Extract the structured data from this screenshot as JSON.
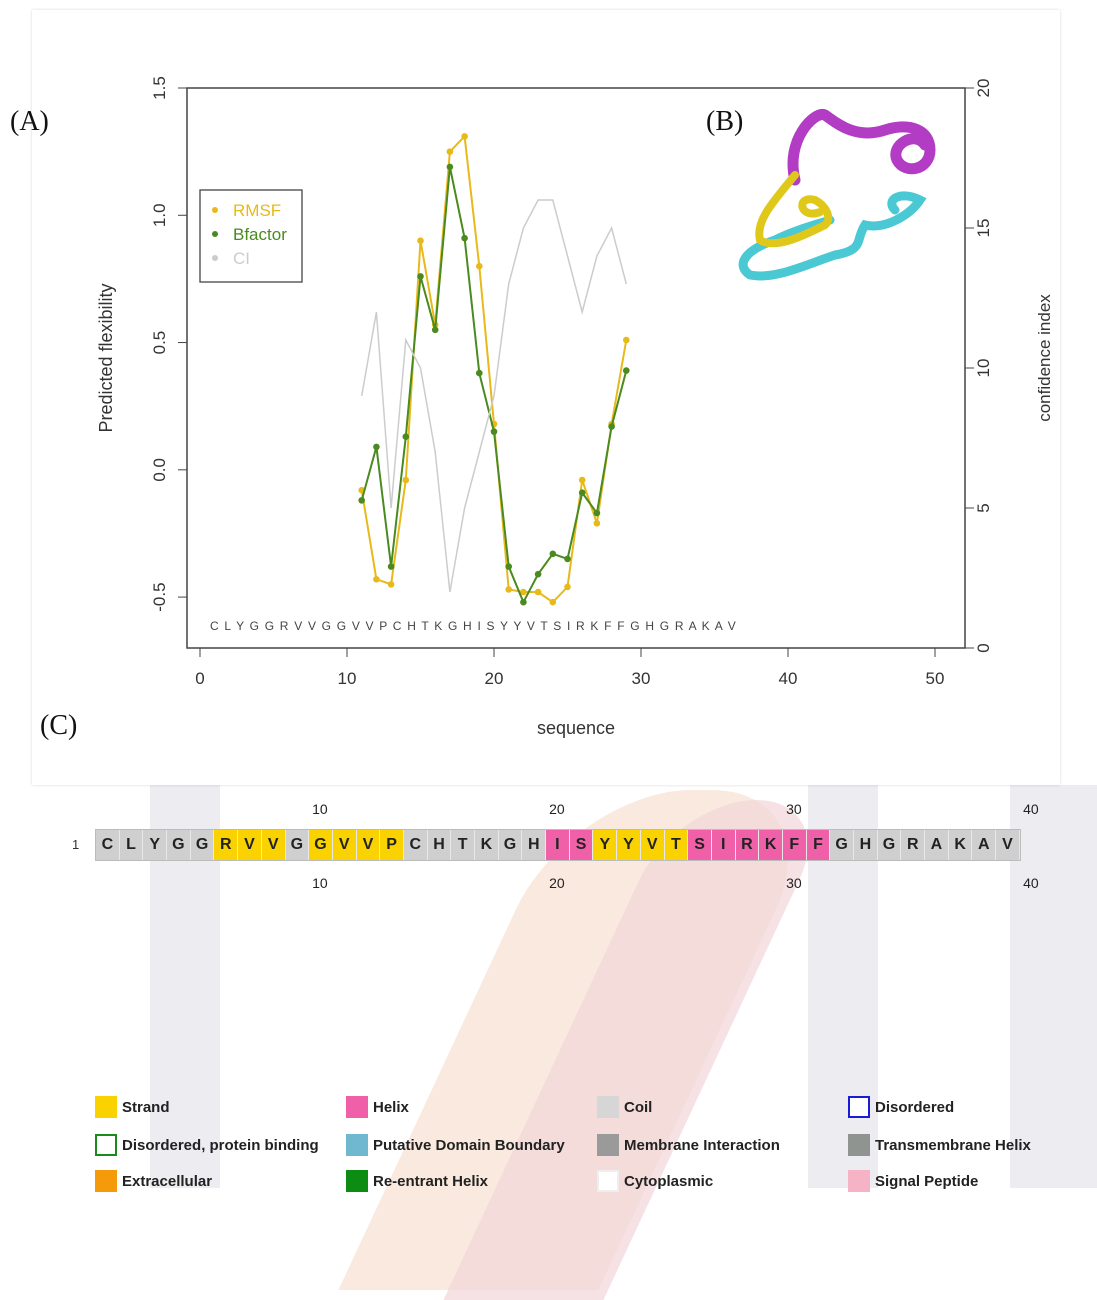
{
  "panels": {
    "a": "(A)",
    "b": "(B)",
    "c": "(C)"
  },
  "chart_data": {
    "type": "line",
    "xlabel": "sequence",
    "ylabel": "Predicted flexibility",
    "y2label": "confidence index",
    "xlim": [
      0,
      50
    ],
    "ylim": [
      -0.7,
      1.5
    ],
    "y2lim": [
      0,
      20
    ],
    "xticks": [
      0,
      10,
      20,
      30,
      40,
      50
    ],
    "yticks": [
      -0.5,
      0.0,
      0.5,
      1.0,
      1.5
    ],
    "y2ticks": [
      0,
      5,
      10,
      15,
      20
    ],
    "legend_position": "top-left",
    "x": [
      11,
      12,
      13,
      14,
      15,
      16,
      17,
      18,
      19,
      20,
      21,
      22,
      23,
      24,
      25,
      26,
      27,
      28,
      29
    ],
    "series": [
      {
        "name": "RMSF",
        "color": "#e8b91a",
        "values": [
          -0.08,
          -0.43,
          -0.45,
          -0.04,
          0.9,
          0.57,
          1.25,
          1.31,
          0.8,
          0.18,
          -0.47,
          -0.48,
          -0.48,
          -0.52,
          -0.46,
          -0.04,
          -0.21,
          0.18,
          0.51
        ]
      },
      {
        "name": "Bfactor",
        "color": "#4a8a1e",
        "values": [
          -0.12,
          0.09,
          -0.38,
          0.13,
          0.76,
          0.55,
          1.19,
          0.91,
          0.38,
          0.15,
          -0.38,
          -0.52,
          -0.41,
          -0.33,
          -0.35,
          -0.09,
          -0.17,
          0.17,
          0.39
        ]
      },
      {
        "name": "CI",
        "color": "#cccccc",
        "axis": "right",
        "values": [
          9,
          12,
          5,
          11,
          10,
          7,
          2,
          5,
          7,
          9,
          13,
          15,
          16,
          16,
          14,
          12,
          14,
          15,
          13
        ]
      }
    ],
    "sequence_letters": "C L Y G G R V V G G V V P C H T K G H I S Y Y V T S I R K F F G H G R A K A V"
  },
  "sequence_viewer": {
    "start": "1",
    "top_numbers": [
      "10",
      "20",
      "30",
      "40"
    ],
    "bottom_numbers": [
      "10",
      "20",
      "30",
      "40"
    ],
    "residues": [
      {
        "aa": "C",
        "type": "coil"
      },
      {
        "aa": "L",
        "type": "coil"
      },
      {
        "aa": "Y",
        "type": "coil"
      },
      {
        "aa": "G",
        "type": "coil"
      },
      {
        "aa": "G",
        "type": "coil"
      },
      {
        "aa": "R",
        "type": "strand"
      },
      {
        "aa": "V",
        "type": "strand"
      },
      {
        "aa": "V",
        "type": "strand"
      },
      {
        "aa": "G",
        "type": "coil"
      },
      {
        "aa": "G",
        "type": "strand"
      },
      {
        "aa": "V",
        "type": "strand"
      },
      {
        "aa": "V",
        "type": "strand"
      },
      {
        "aa": "P",
        "type": "strand"
      },
      {
        "aa": "C",
        "type": "coil"
      },
      {
        "aa": "H",
        "type": "coil"
      },
      {
        "aa": "T",
        "type": "coil"
      },
      {
        "aa": "K",
        "type": "coil"
      },
      {
        "aa": "G",
        "type": "coil"
      },
      {
        "aa": "H",
        "type": "coil"
      },
      {
        "aa": "I",
        "type": "helix"
      },
      {
        "aa": "S",
        "type": "helix"
      },
      {
        "aa": "Y",
        "type": "strand"
      },
      {
        "aa": "Y",
        "type": "strand"
      },
      {
        "aa": "V",
        "type": "strand"
      },
      {
        "aa": "T",
        "type": "strand"
      },
      {
        "aa": "S",
        "type": "helix"
      },
      {
        "aa": "I",
        "type": "helix"
      },
      {
        "aa": "R",
        "type": "helix"
      },
      {
        "aa": "K",
        "type": "helix"
      },
      {
        "aa": "F",
        "type": "helix"
      },
      {
        "aa": "F",
        "type": "helix"
      },
      {
        "aa": "G",
        "type": "coil"
      },
      {
        "aa": "H",
        "type": "coil"
      },
      {
        "aa": "G",
        "type": "coil"
      },
      {
        "aa": "R",
        "type": "coil"
      },
      {
        "aa": "A",
        "type": "coil"
      },
      {
        "aa": "K",
        "type": "coil"
      },
      {
        "aa": "A",
        "type": "coil"
      },
      {
        "aa": "V",
        "type": "coil"
      }
    ],
    "colors": {
      "strand": "#f9d200",
      "helix": "#f060a8",
      "coil": "#cfcfcf"
    }
  },
  "legend": [
    {
      "label": "Strand",
      "fill": "#f9d200",
      "border": "#f9d200"
    },
    {
      "label": "Helix",
      "fill": "#f060a8",
      "border": "#f060a8"
    },
    {
      "label": "Coil",
      "fill": "#d6d6d6",
      "border": "#d6d6d6"
    },
    {
      "label": "Disordered",
      "fill": "#ffffff",
      "border": "#1a1adb"
    },
    {
      "label": "Disordered, protein binding",
      "fill": "#ffffff",
      "border": "#1a8a1a"
    },
    {
      "label": "Putative Domain Boundary",
      "fill": "#6fb8d0",
      "border": "#6fb8d0"
    },
    {
      "label": "Membrane Interaction",
      "fill": "#9a9a9a",
      "border": "#9a9a9a"
    },
    {
      "label": "Transmembrane Helix",
      "fill": "#8f9490",
      "border": "#8f9490"
    },
    {
      "label": "Extracellular",
      "fill": "#f59a0a",
      "border": "#f59a0a"
    },
    {
      "label": "Re-entrant Helix",
      "fill": "#0c8c12",
      "border": "#0c8c12"
    },
    {
      "label": "Cytoplasmic",
      "fill": "#ffffff",
      "border": "#eeeeee"
    },
    {
      "label": "Signal Peptide",
      "fill": "#f6b3c6",
      "border": "#f6b3c6"
    }
  ]
}
